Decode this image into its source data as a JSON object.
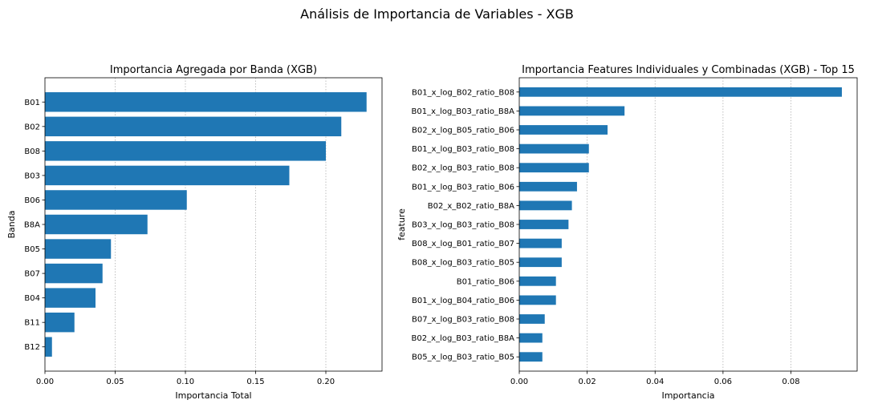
{
  "suptitle": "Análisis de Importancia de Variables - XGB",
  "chart_data": [
    {
      "type": "bar",
      "orientation": "horizontal",
      "title": "Importancia Agregada por Banda (XGB)",
      "xlabel": "Importancia Total",
      "ylabel": "Banda",
      "xlim": [
        0,
        0.24
      ],
      "xticks": [
        0,
        0.05,
        0.1,
        0.15,
        0.2
      ],
      "xtick_labels": [
        "0.00",
        "0.05",
        "0.10",
        "0.15",
        "0.20"
      ],
      "grid": "x dotted",
      "categories": [
        "B01",
        "B02",
        "B08",
        "B03",
        "B06",
        "B8A",
        "B05",
        "B07",
        "B04",
        "B11",
        "B12"
      ],
      "values": [
        0.229,
        0.211,
        0.2,
        0.174,
        0.101,
        0.073,
        0.047,
        0.041,
        0.036,
        0.021,
        0.005
      ],
      "color": "#1f77b4"
    },
    {
      "type": "bar",
      "orientation": "horizontal",
      "title": "Importancia Features Individuales y Combinadas (XGB) - Top 15",
      "xlabel": "Importancia",
      "ylabel": "feature",
      "xlim": [
        0,
        0.0995
      ],
      "xticks": [
        0,
        0.02,
        0.04,
        0.06,
        0.08
      ],
      "xtick_labels": [
        "0.00",
        "0.02",
        "0.04",
        "0.06",
        "0.08"
      ],
      "grid": "x dotted",
      "categories": [
        "B01_x_log_B02_ratio_B08",
        "B01_x_log_B03_ratio_B8A",
        "B02_x_log_B05_ratio_B06",
        "B01_x_log_B03_ratio_B08",
        "B02_x_log_B03_ratio_B08",
        "B01_x_log_B03_ratio_B06",
        "B02_x_B02_ratio_B8A",
        "B03_x_log_B03_ratio_B08",
        "B08_x_log_B01_ratio_B07",
        "B08_x_log_B03_ratio_B05",
        "B01_ratio_B06",
        "B01_x_log_B04_ratio_B06",
        "B07_x_log_B03_ratio_B08",
        "B02_x_log_B03_ratio_B8A",
        "B05_x_log_B03_ratio_B05"
      ],
      "values": [
        0.095,
        0.031,
        0.026,
        0.0205,
        0.0205,
        0.017,
        0.0155,
        0.0145,
        0.0125,
        0.0125,
        0.0108,
        0.0108,
        0.0075,
        0.0068,
        0.0068
      ],
      "color": "#1f77b4"
    }
  ]
}
